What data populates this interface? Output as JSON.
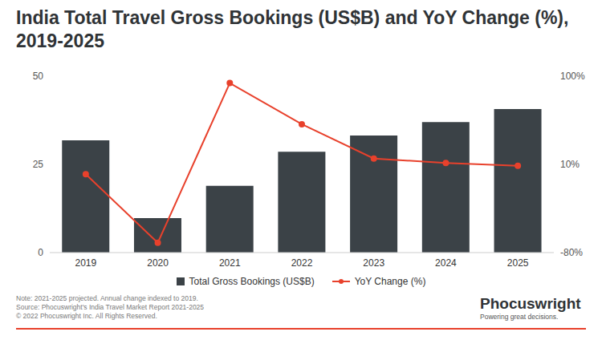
{
  "chart_data": {
    "type": "bar",
    "title": "India Total Travel Gross Bookings (US$B) and YoY Change (%), 2019-2025",
    "categories": [
      "2019",
      "2020",
      "2021",
      "2022",
      "2023",
      "2024",
      "2025"
    ],
    "series": [
      {
        "name": "Total Gross Bookings (US$B)",
        "type": "bar",
        "color": "#3b4247",
        "values": [
          31.8,
          9.8,
          18.9,
          28.6,
          33.2,
          37,
          40.7
        ]
      },
      {
        "name": "YoY Change (%)",
        "type": "line",
        "color": "#e8412c",
        "marker": "circle",
        "axis": "y2",
        "values": [
          0,
          -70,
          93,
          51,
          16,
          11.5,
          8.5
        ]
      }
    ],
    "ylim": [
      0,
      50
    ],
    "yticks": [
      0,
      25,
      50
    ],
    "y2lim": [
      -80,
      100
    ],
    "y2ticks": [
      {
        "value": -80,
        "label": "-80%"
      },
      {
        "value": 10,
        "label": "10%"
      },
      {
        "value": 100,
        "label": "100%"
      }
    ],
    "grid": false,
    "legend": "bottom",
    "note": "Note: 2021-2025 projected. Annual change indexed to 2019.",
    "source": "Source: Phocuswright's India Travel Market Report 2021-2025",
    "copyright": "© 2022 Phocuswright Inc. All Rights Reserved.",
    "logo": "Phocuswright",
    "tagline": "Powering great decisions."
  }
}
